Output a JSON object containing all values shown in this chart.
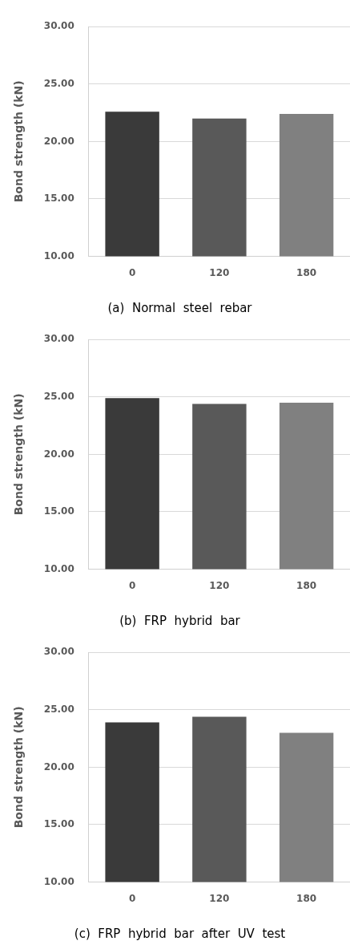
{
  "chart_data": [
    {
      "type": "bar",
      "title": "(a)  Normal  steel  rebar",
      "ylabel": "Bond strength (kN)",
      "categories": [
        "0",
        "120",
        "180"
      ],
      "values": [
        22.6,
        22.0,
        22.4
      ],
      "colors": [
        "#3a3a3a",
        "#595959",
        "#808080"
      ],
      "ylim": [
        10,
        30
      ],
      "yticks": [
        {
          "value": 10,
          "label": "10.00"
        },
        {
          "value": 15,
          "label": "15.00"
        },
        {
          "value": 20,
          "label": "20.00"
        },
        {
          "value": 25,
          "label": "25.00"
        },
        {
          "value": 30,
          "label": "30.00"
        }
      ],
      "grid": "y",
      "legend": false
    },
    {
      "type": "bar",
      "title": "(b)  FRP  hybrid  bar",
      "ylabel": "Bond strength (kN)",
      "categories": [
        "0",
        "120",
        "180"
      ],
      "values": [
        24.9,
        24.4,
        24.5
      ],
      "colors": [
        "#3a3a3a",
        "#595959",
        "#808080"
      ],
      "ylim": [
        10,
        30
      ],
      "yticks": [
        {
          "value": 10,
          "label": "10.00"
        },
        {
          "value": 15,
          "label": "15.00"
        },
        {
          "value": 20,
          "label": "20.00"
        },
        {
          "value": 25,
          "label": "25.00"
        },
        {
          "value": 30,
          "label": "30.00"
        }
      ],
      "grid": "y",
      "legend": false
    },
    {
      "type": "bar",
      "title": "(c)  FRP  hybrid  bar  after  UV  test",
      "ylabel": "Bond strength (kN)",
      "categories": [
        "0",
        "120",
        "180"
      ],
      "values": [
        23.9,
        24.4,
        23.0
      ],
      "colors": [
        "#3a3a3a",
        "#595959",
        "#808080"
      ],
      "ylim": [
        10,
        30
      ],
      "yticks": [
        {
          "value": 10,
          "label": "10.00"
        },
        {
          "value": 15,
          "label": "15.00"
        },
        {
          "value": 20,
          "label": "20.00"
        },
        {
          "value": 25,
          "label": "25.00"
        },
        {
          "value": 30,
          "label": "30.00"
        }
      ],
      "grid": "y",
      "legend": false
    }
  ]
}
